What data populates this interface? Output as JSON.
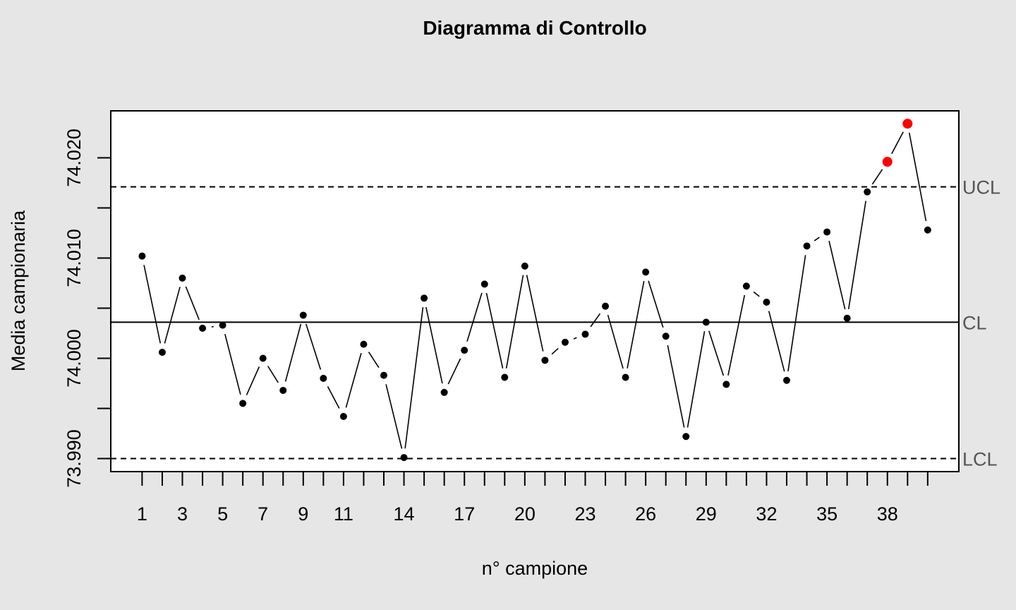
{
  "chart_data": {
    "type": "line",
    "title": "Diagramma di Controllo",
    "xlabel": "n° campione",
    "ylabel": "Media campionaria",
    "x_tick_labels": [
      "1",
      "3",
      "5",
      "7",
      "9",
      "11",
      "14",
      "17",
      "20",
      "23",
      "26",
      "29",
      "32",
      "35",
      "38"
    ],
    "y_tick_labels": [
      "73.990",
      "74.000",
      "74.010",
      "74.020"
    ],
    "ylim": [
      73.9888,
      74.0246
    ],
    "xlim": [
      0,
      41
    ],
    "grid": false,
    "reference_lines": [
      {
        "label": "UCL",
        "value": 74.0171,
        "style": "dashed"
      },
      {
        "label": "CL",
        "value": 74.0036,
        "style": "solid"
      },
      {
        "label": "LCL",
        "value": 73.99,
        "style": "dashed"
      }
    ],
    "series": [
      {
        "x": [
          1,
          2,
          3,
          4,
          5,
          6,
          7,
          8,
          9,
          10,
          11,
          12,
          13,
          14,
          15,
          16,
          17,
          18,
          19,
          20,
          21,
          22,
          23,
          24,
          25,
          26,
          27,
          28,
          29,
          30,
          31,
          32,
          33,
          34,
          35,
          36,
          37,
          38,
          39,
          40
        ],
        "values": [
          74.0102,
          74.0006,
          74.008,
          74.003,
          74.0033,
          73.9955,
          74.0,
          73.9968,
          74.0043,
          73.998,
          73.9942,
          74.0014,
          73.9983,
          73.9901,
          74.006,
          73.9966,
          74.0008,
          74.0074,
          73.9981,
          74.0092,
          73.9998,
          74.0016,
          74.0024,
          74.0052,
          73.9981,
          74.0086,
          74.0022,
          73.9922,
          74.0036,
          73.9974,
          74.0072,
          74.0056,
          73.9978,
          74.0112,
          74.0126,
          74.004,
          74.0166,
          74.0196,
          74.0234,
          74.0128
        ],
        "out_of_control_color": "#ff0000",
        "point_color": "#000000"
      }
    ]
  }
}
